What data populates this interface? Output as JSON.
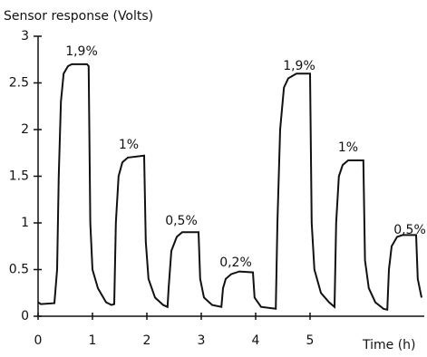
{
  "chart_data": {
    "type": "line",
    "y_label": "Sensor response (Volts)",
    "x_label": "Time (h)",
    "color": "#111111",
    "xlim": [
      0,
      7.1
    ],
    "ylim": [
      0,
      3
    ],
    "xticks": [
      0,
      1,
      2,
      3,
      4,
      5
    ],
    "yticks": [
      0,
      0.5,
      1,
      1.5,
      2,
      2.5,
      3
    ],
    "grid": false,
    "annotations": [
      "1,9%",
      "1%",
      "0,5%",
      "0,2%",
      "1,9%",
      "1%",
      "0,5%"
    ],
    "x": [
      0,
      0.05,
      0.3,
      0.35,
      0.38,
      0.42,
      0.47,
      0.55,
      0.62,
      0.9,
      0.93,
      0.96,
      1.0,
      1.1,
      1.25,
      1.35,
      1.4,
      1.43,
      1.48,
      1.55,
      1.65,
      1.95,
      1.98,
      2.03,
      2.15,
      2.3,
      2.38,
      2.4,
      2.45,
      2.55,
      2.65,
      2.95,
      2.98,
      3.05,
      3.2,
      3.37,
      3.4,
      3.45,
      3.55,
      3.7,
      3.95,
      3.98,
      4.1,
      4.37,
      4.4,
      4.45,
      4.52,
      4.6,
      4.75,
      5.0,
      5.03,
      5.08,
      5.2,
      5.35,
      5.45,
      5.48,
      5.53,
      5.6,
      5.7,
      5.98,
      6.01,
      6.08,
      6.2,
      6.35,
      6.42,
      6.45,
      6.5,
      6.6,
      6.7,
      6.95,
      6.98,
      7.05
    ],
    "values": [
      0.15,
      0.13,
      0.14,
      0.5,
      1.5,
      2.3,
      2.6,
      2.68,
      2.7,
      2.7,
      2.68,
      1.0,
      0.5,
      0.3,
      0.15,
      0.12,
      0.13,
      1.0,
      1.5,
      1.65,
      1.7,
      1.72,
      0.8,
      0.4,
      0.2,
      0.12,
      0.1,
      0.3,
      0.7,
      0.85,
      0.9,
      0.9,
      0.4,
      0.2,
      0.12,
      0.1,
      0.3,
      0.4,
      0.45,
      0.48,
      0.47,
      0.2,
      0.1,
      0.08,
      1.0,
      2.0,
      2.45,
      2.55,
      2.6,
      2.6,
      1.0,
      0.5,
      0.25,
      0.15,
      0.1,
      1.0,
      1.5,
      1.62,
      1.67,
      1.67,
      0.6,
      0.3,
      0.15,
      0.08,
      0.07,
      0.5,
      0.75,
      0.85,
      0.87,
      0.87,
      0.4,
      0.2
    ]
  }
}
